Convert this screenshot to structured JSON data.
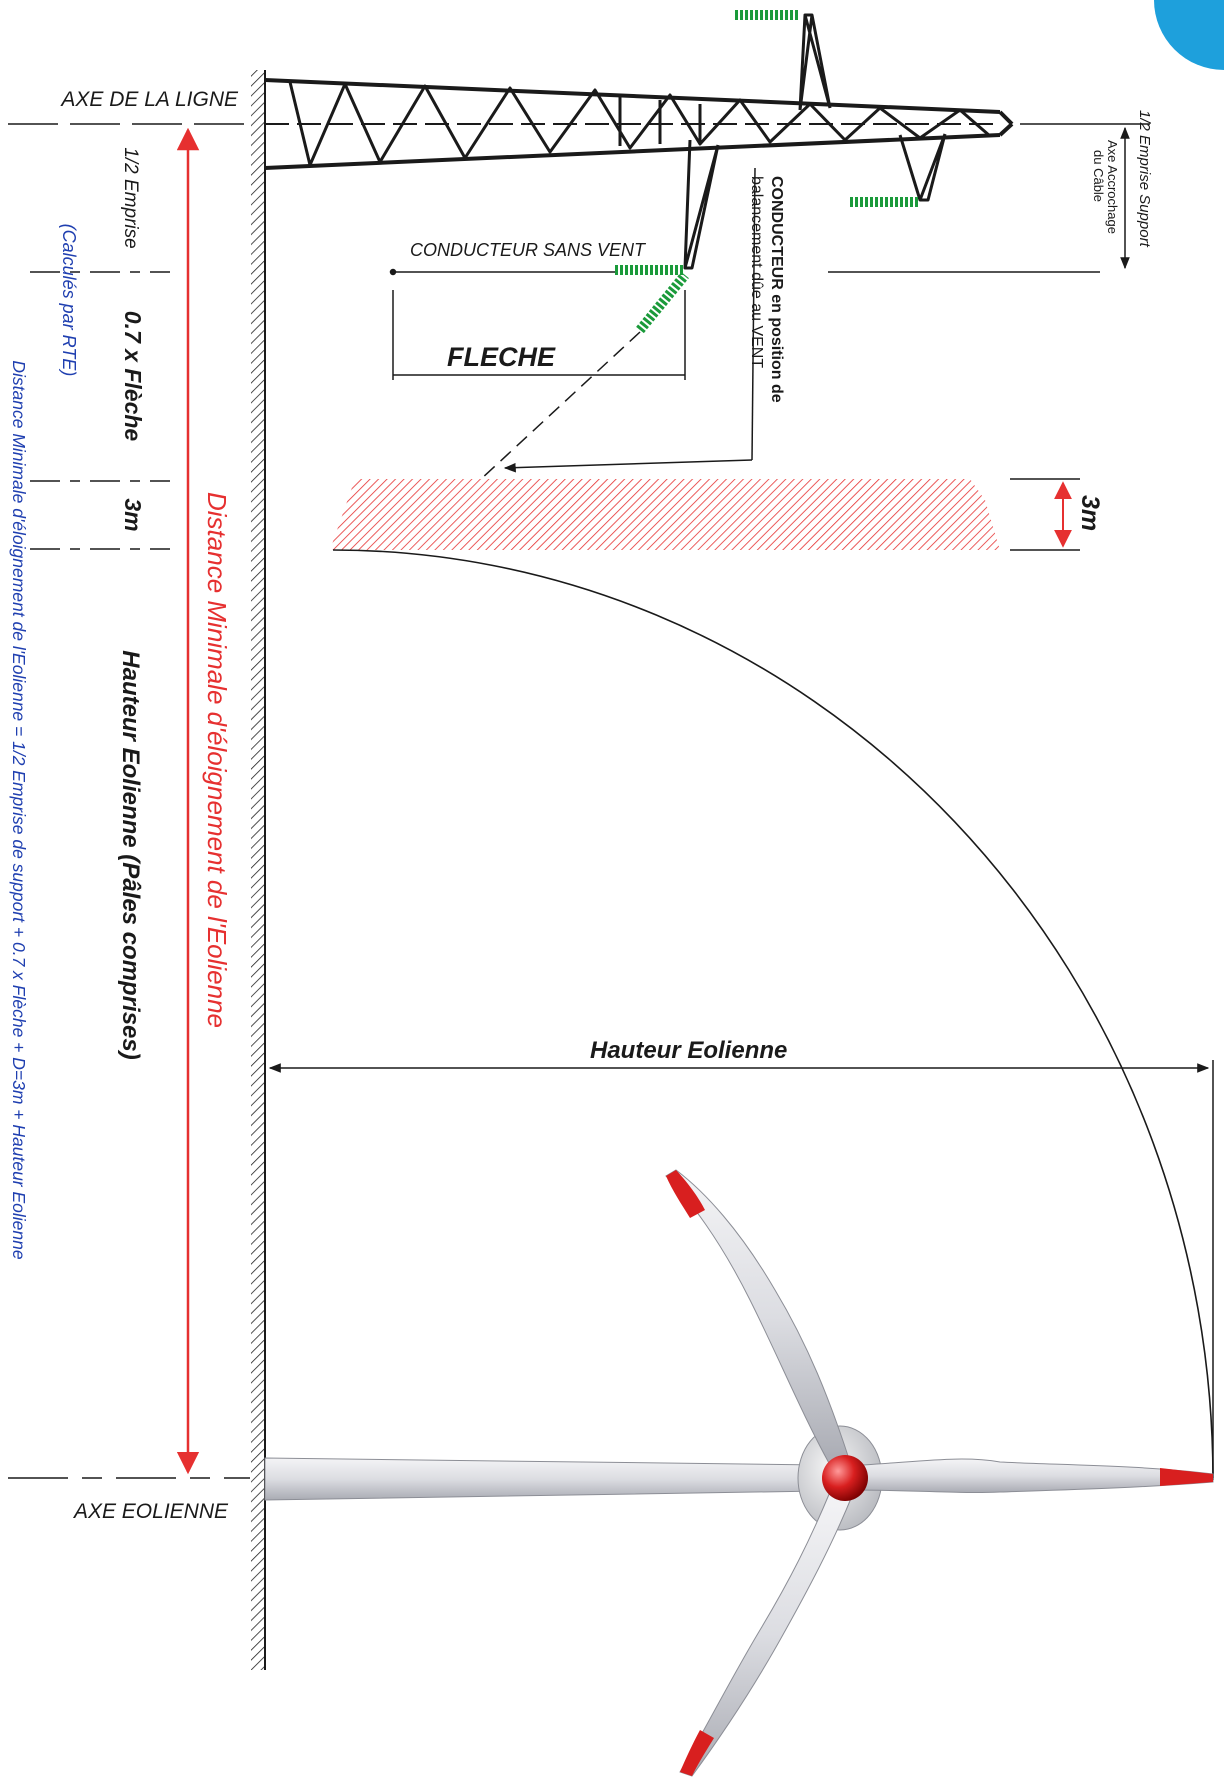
{
  "labels": {
    "axe_ligne": "AXE DE LA LIGNE",
    "axe_eolienne": "AXE EOLIENNE",
    "demi_emprise": "1/2 Emprise",
    "fleche_factor": "0.7 x Flèche",
    "trois_m": "3m",
    "hauteur_eolienne_pales": "Hauteur Eolienne (Pâles comprises)",
    "distance_minimale": "Distance Minimale d'éloignement de l'Eolienne",
    "calcules_rte": "(Calculés par RTE)",
    "formule": "Distance Minimale d'éloignement de l'Eolienne = 1/2 Emprise de support + 0.7 x Flèche + D=3m + Hauteur Eolienne",
    "conducteur_sans_vent": "CONDUCTEUR SANS VENT",
    "fleche": "FLECHE",
    "conducteur_vent_1": "CONDUCTEUR en position de",
    "conducteur_vent_2": "balancement dûe au VENT",
    "demi_emprise_support": "1/2 Emprise Support",
    "axe_accrochage_1": "Axe Accrochage",
    "axe_accrochage_2": "du Câble",
    "zone_3m": "3m",
    "hauteur_eolienne": "Hauteur Eolienne"
  },
  "colors": {
    "red": "#e63030",
    "blue": "#1f3fb0",
    "black": "#1a1a1a",
    "green": "#1a9a3a",
    "corner_accent": "#1ea0dc"
  }
}
